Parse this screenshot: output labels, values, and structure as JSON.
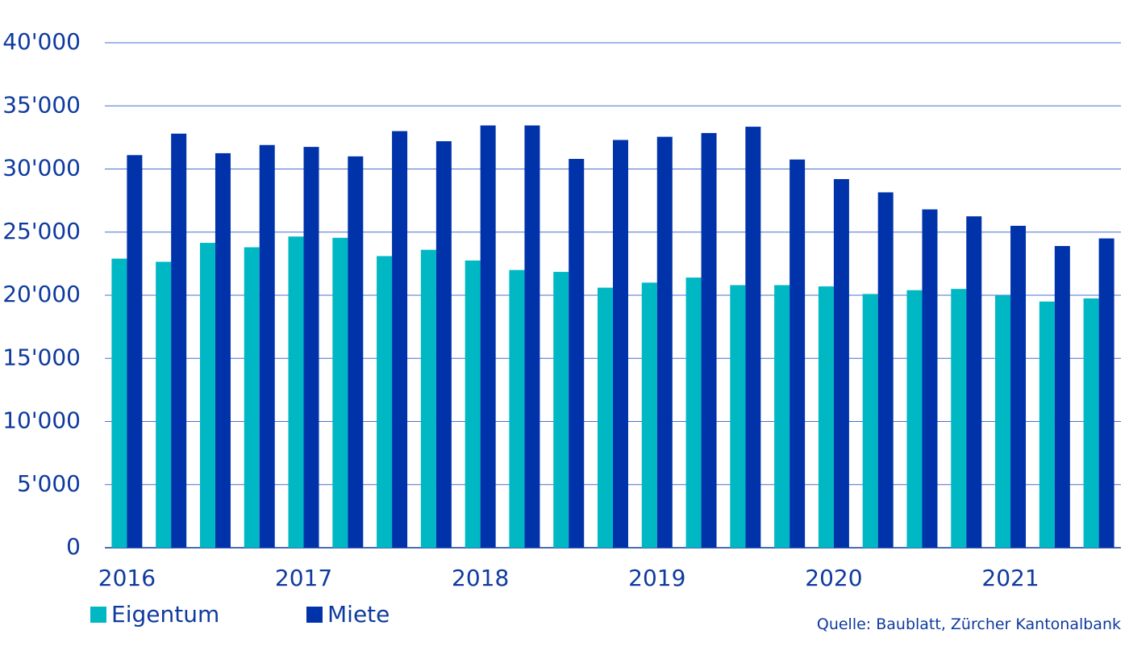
{
  "chart_data": {
    "type": "bar",
    "categories": [
      "2016",
      null,
      null,
      null,
      "2017",
      null,
      null,
      null,
      "2018",
      null,
      null,
      null,
      "2019",
      null,
      null,
      null,
      "2020",
      null,
      null,
      null,
      "2021",
      null,
      null
    ],
    "series": [
      {
        "name": "Eigentum",
        "color": "#00b8c4",
        "values": [
          22900,
          22650,
          24150,
          23800,
          24650,
          24550,
          23100,
          23600,
          22750,
          22000,
          21850,
          20600,
          21000,
          21400,
          20800,
          20800,
          20700,
          20100,
          20400,
          20500,
          20000,
          19500,
          19750
        ]
      },
      {
        "name": "Miete",
        "color": "#0033aa",
        "values": [
          31100,
          32800,
          31250,
          31900,
          31750,
          31000,
          33000,
          32200,
          33450,
          33450,
          30800,
          32300,
          32550,
          32850,
          33350,
          30750,
          29200,
          28150,
          26800,
          26250,
          25500,
          23900,
          24500
        ]
      }
    ],
    "ylim": [
      0,
      40000
    ],
    "yticks": [
      0,
      {
        "value": 5000,
        "label": "5'000"
      },
      {
        "value": 10000,
        "label": "10'000"
      },
      {
        "value": 15000,
        "label": "15'000"
      },
      {
        "value": 20000,
        "label": "20'000"
      },
      {
        "value": 25000,
        "label": "25'000"
      },
      {
        "value": 30000,
        "label": "30'000"
      },
      {
        "value": 35000,
        "label": "35'000"
      },
      {
        "value": 40000,
        "label": "40'000"
      }
    ],
    "grid": true,
    "legend": "bottom-left",
    "source": "Quelle: Baublatt, Zürcher Kantonalbank"
  }
}
